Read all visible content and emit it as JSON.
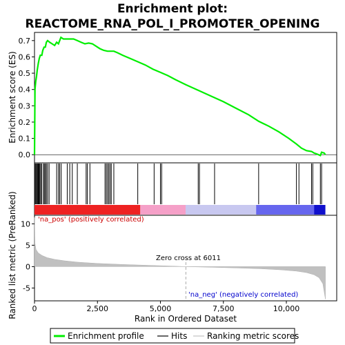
{
  "chart_data": {
    "type": "line",
    "title_line1": "Enrichment plot:",
    "title_line2": "REACTOME_RNA_POL_I_PROMOTER_OPENING",
    "top_panel": {
      "ylabel": "Enrichment score (ES)",
      "ylim": [
        -0.05,
        0.75
      ],
      "yticks": [
        "0.0",
        "0.1",
        "0.2",
        "0.3",
        "0.4",
        "0.5",
        "0.6",
        "0.7"
      ],
      "ytick_values": [
        0.0,
        0.1,
        0.2,
        0.3,
        0.4,
        0.5,
        0.6,
        0.7
      ],
      "grid": false,
      "es_curve": {
        "name": "Enrichment profile",
        "color": "#00ee00",
        "points": [
          [
            0,
            0.0
          ],
          [
            10,
            0.22
          ],
          [
            20,
            0.4
          ],
          [
            50,
            0.45
          ],
          [
            80,
            0.48
          ],
          [
            110,
            0.52
          ],
          [
            150,
            0.56
          ],
          [
            190,
            0.59
          ],
          [
            230,
            0.61
          ],
          [
            290,
            0.61
          ],
          [
            330,
            0.64
          ],
          [
            380,
            0.66
          ],
          [
            430,
            0.66
          ],
          [
            470,
            0.69
          ],
          [
            520,
            0.7
          ],
          [
            600,
            0.69
          ],
          [
            700,
            0.68
          ],
          [
            800,
            0.67
          ],
          [
            880,
            0.69
          ],
          [
            950,
            0.68
          ],
          [
            1000,
            0.7
          ],
          [
            1050,
            0.72
          ],
          [
            1150,
            0.71
          ],
          [
            1250,
            0.71
          ],
          [
            1400,
            0.71
          ],
          [
            1550,
            0.71
          ],
          [
            1700,
            0.7
          ],
          [
            1850,
            0.69
          ],
          [
            2000,
            0.68
          ],
          [
            2150,
            0.685
          ],
          [
            2300,
            0.68
          ],
          [
            2450,
            0.665
          ],
          [
            2600,
            0.65
          ],
          [
            2750,
            0.64
          ],
          [
            2900,
            0.635
          ],
          [
            3000,
            0.635
          ],
          [
            3150,
            0.635
          ],
          [
            3300,
            0.625
          ],
          [
            3500,
            0.61
          ],
          [
            3800,
            0.59
          ],
          [
            4100,
            0.57
          ],
          [
            4400,
            0.55
          ],
          [
            4700,
            0.525
          ],
          [
            5000,
            0.505
          ],
          [
            5300,
            0.485
          ],
          [
            5600,
            0.46
          ],
          [
            6000,
            0.43
          ],
          [
            6500,
            0.395
          ],
          [
            7000,
            0.36
          ],
          [
            7500,
            0.325
          ],
          [
            8000,
            0.285
          ],
          [
            8500,
            0.245
          ],
          [
            8900,
            0.205
          ],
          [
            9300,
            0.175
          ],
          [
            9700,
            0.14
          ],
          [
            10100,
            0.1
          ],
          [
            10400,
            0.065
          ],
          [
            10600,
            0.04
          ],
          [
            10800,
            0.025
          ],
          [
            11000,
            0.02
          ],
          [
            11100,
            0.01
          ],
          [
            11200,
            0.005
          ],
          [
            11350,
            -0.005
          ],
          [
            11400,
            0.015
          ],
          [
            11500,
            0.01
          ],
          [
            11550,
            0.0
          ]
        ]
      }
    },
    "hits_panel": {
      "hit_ranks": [
        30,
        60,
        90,
        120,
        150,
        180,
        210,
        250,
        280,
        350,
        390,
        430,
        470,
        520,
        580,
        880,
        950,
        1000,
        1060,
        1300,
        1400,
        1500,
        1700,
        2050,
        2100,
        2200,
        2800,
        2850,
        2900,
        2950,
        3000,
        3050,
        3150,
        4100,
        4750,
        5000,
        5050,
        6500,
        6550,
        7150,
        8900,
        10400,
        10500,
        11000,
        11050,
        11350,
        11400
      ],
      "color_bar_segments": [
        {
          "from": 0,
          "to": 4200,
          "color": "#ee2222"
        },
        {
          "from": 4200,
          "to": 6000,
          "color": "#f5a0c8"
        },
        {
          "from": 6000,
          "to": 8800,
          "color": "#c8c8f0"
        },
        {
          "from": 8800,
          "to": 11100,
          "color": "#6666ee"
        },
        {
          "from": 11100,
          "to": 11550,
          "color": "#1010cc"
        }
      ]
    },
    "bottom_panel": {
      "ylabel": "Ranked list metric (PreRanked)",
      "xlabel": "Rank in Ordered Dataset",
      "ylim": [
        -8,
        12
      ],
      "yticks": [
        "10",
        "5",
        "0",
        "-5"
      ],
      "ytick_values": [
        10,
        5,
        0,
        -5
      ],
      "xlim": [
        0,
        12000
      ],
      "xticks": [
        "0",
        "2,500",
        "5,000",
        "7,500",
        "10,000"
      ],
      "xtick_values": [
        0,
        2500,
        5000,
        7500,
        10000
      ],
      "metric_profile": [
        [
          0,
          11.5
        ],
        [
          20,
          5.5
        ],
        [
          60,
          4.0
        ],
        [
          150,
          3.2
        ],
        [
          300,
          2.6
        ],
        [
          500,
          2.1
        ],
        [
          800,
          1.7
        ],
        [
          1200,
          1.35
        ],
        [
          1700,
          1.05
        ],
        [
          2500,
          0.75
        ],
        [
          3500,
          0.5
        ],
        [
          4500,
          0.3
        ],
        [
          5500,
          0.12
        ],
        [
          6011,
          0.0
        ],
        [
          7000,
          -0.15
        ],
        [
          8000,
          -0.3
        ],
        [
          9000,
          -0.5
        ],
        [
          9800,
          -0.75
        ],
        [
          10400,
          -1.05
        ],
        [
          10800,
          -1.4
        ],
        [
          11100,
          -1.9
        ],
        [
          11300,
          -2.6
        ],
        [
          11450,
          -4.0
        ],
        [
          11550,
          -7.6
        ]
      ],
      "zero_cross_label": "Zero cross at 6011",
      "zero_cross": 6011,
      "pos_label": "'na_pos' (positively correlated)",
      "neg_label": "'na_neg' (negatively correlated)"
    },
    "legend": [
      {
        "label": "Enrichment profile",
        "color": "#00ee00",
        "kind": "thick"
      },
      {
        "label": "Hits",
        "color": "#000000",
        "kind": "thin"
      },
      {
        "label": "Ranking metric scores",
        "color": "#c0c0c0",
        "kind": "thin"
      }
    ]
  }
}
